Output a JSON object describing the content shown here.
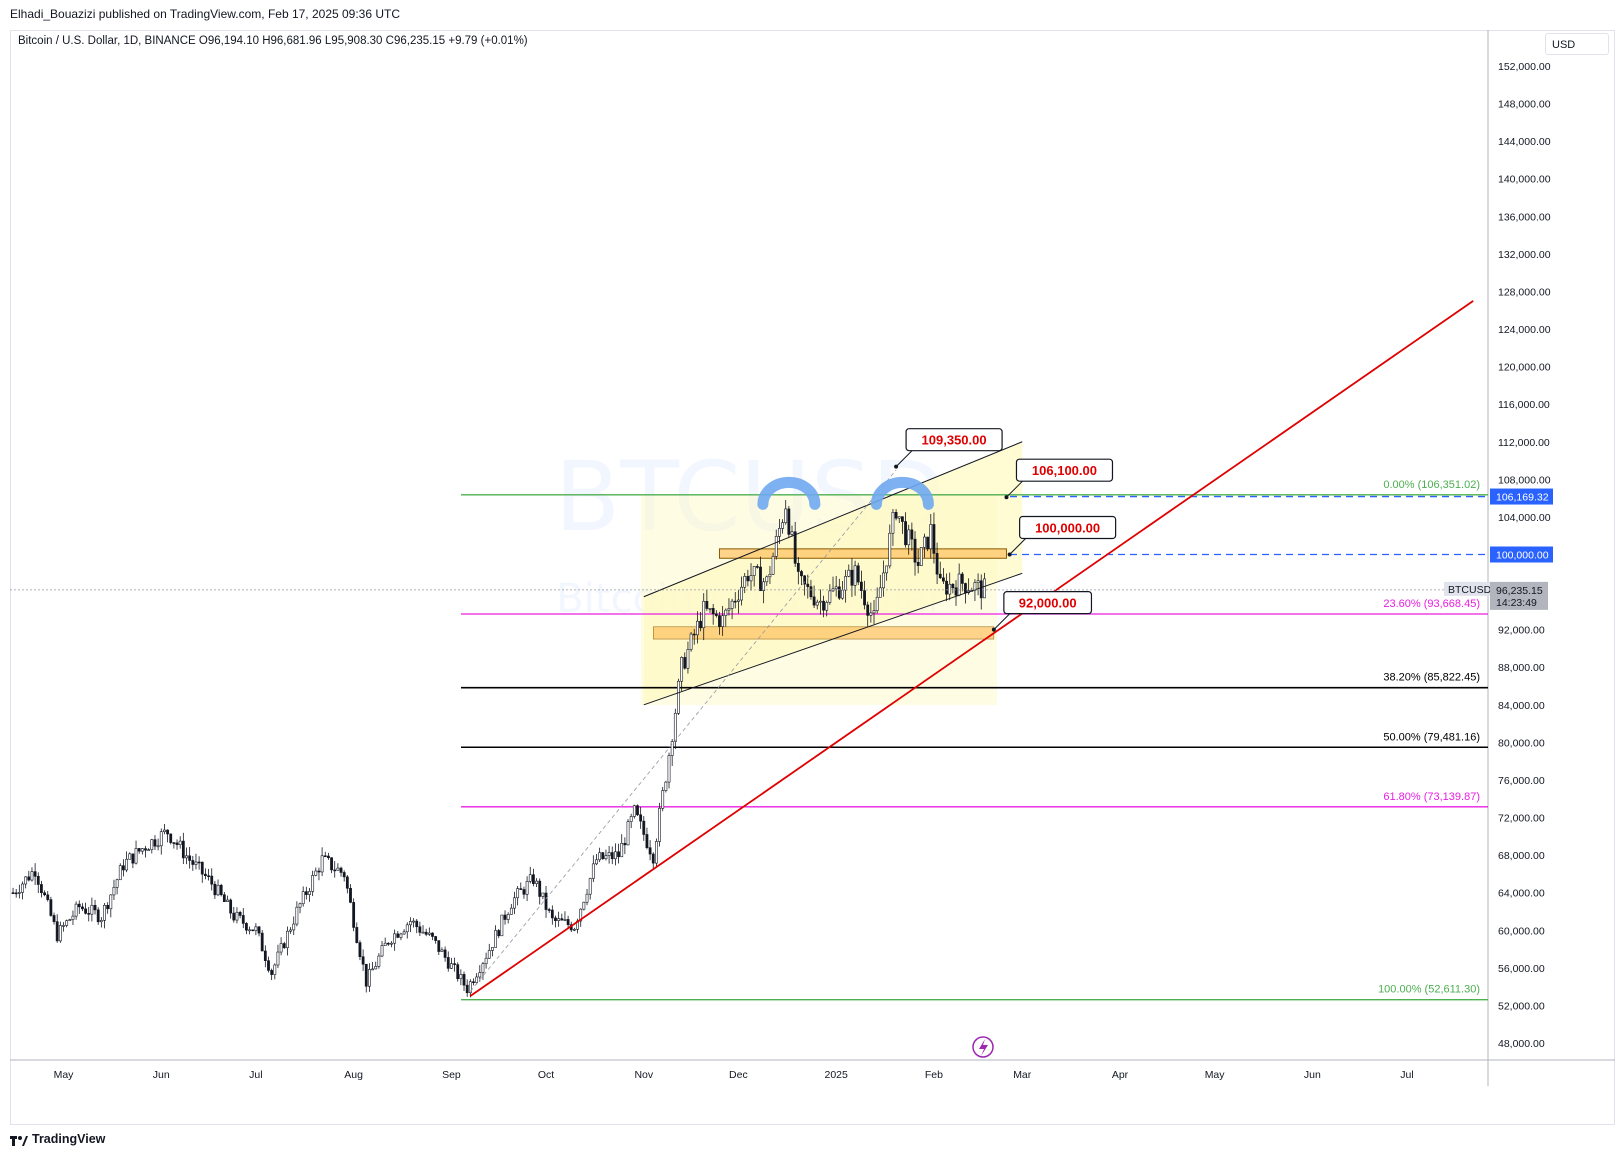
{
  "header": {
    "published": "Elhadi_Bouazizi published on TradingView.com, Feb 17, 2025 09:36 UTC",
    "symbol": "Bitcoin / U.S. Dollar, 1D, BINANCE",
    "open_label": "O",
    "open": "96,194.10",
    "high_label": "H",
    "high": "96,681.96",
    "low_label": "L",
    "low": "95,908.30",
    "close_label": "C",
    "close": "96,235.15",
    "change": "+9.79 (+0.01%)",
    "currency": "USD"
  },
  "watermark": {
    "ticker": "BTCUSD",
    "name": "Bitcoin / U.S. Dollar"
  },
  "footer": {
    "brand": "TradingView"
  },
  "colors": {
    "up": "#131722",
    "down": "#131722",
    "trendline": "#e00000",
    "fib_green": "#4caf50",
    "fib_magenta": "#e91ee3",
    "fib_black": "#000000",
    "dashed_blue": "#2962ff",
    "zone": "#ffb74d",
    "channel_fill": "#fff9c4",
    "arc": "#6fa8f0"
  },
  "chart_data": {
    "type": "candlestick",
    "symbol": "BTCUSD",
    "interval": "1D",
    "ylim": [
      46000,
      155000
    ],
    "y_ticks": [
      "152,000.00",
      "148,000.00",
      "144,000.00",
      "140,000.00",
      "136,000.00",
      "132,000.00",
      "128,000.00",
      "124,000.00",
      "120,000.00",
      "116,000.00",
      "112,000.00",
      "108,000.00",
      "104,000.00",
      "92,000.00",
      "88,000.00",
      "84,000.00",
      "80,000.00",
      "76,000.00",
      "72,000.00",
      "68,000.00",
      "64,000.00",
      "60,000.00",
      "56,000.00",
      "52,000.00",
      "48,000.00"
    ],
    "y_tick_values": [
      152000,
      148000,
      144000,
      140000,
      136000,
      132000,
      128000,
      124000,
      120000,
      116000,
      112000,
      108000,
      104000,
      92000,
      88000,
      84000,
      80000,
      76000,
      72000,
      68000,
      64000,
      60000,
      56000,
      52000,
      48000
    ],
    "x_labels": [
      "May",
      "Jun",
      "Jul",
      "Aug",
      "Sep",
      "Oct",
      "Nov",
      "Dec",
      "2025",
      "Feb",
      "Mar",
      "Apr",
      "May",
      "Jun",
      "Jul"
    ],
    "x_label_dates": [
      "2024-05-01",
      "2024-06-01",
      "2024-07-01",
      "2024-08-01",
      "2024-09-01",
      "2024-10-01",
      "2024-11-01",
      "2024-12-01",
      "2025-01-01",
      "2025-02-01",
      "2025-03-01",
      "2025-04-01",
      "2025-05-01",
      "2025-06-01",
      "2025-07-01"
    ],
    "price_path": [
      [
        "2024-04-15",
        64000
      ],
      [
        "2024-04-22",
        66500
      ],
      [
        "2024-04-29",
        59500
      ],
      [
        "2024-05-06",
        62500
      ],
      [
        "2024-05-13",
        61500
      ],
      [
        "2024-05-20",
        67000
      ],
      [
        "2024-05-27",
        69000
      ],
      [
        "2024-06-03",
        70500
      ],
      [
        "2024-06-10",
        67500
      ],
      [
        "2024-06-17",
        65000
      ],
      [
        "2024-06-24",
        61500
      ],
      [
        "2024-07-01",
        60000
      ],
      [
        "2024-07-06",
        55500
      ],
      [
        "2024-07-14",
        62000
      ],
      [
        "2024-07-22",
        67500
      ],
      [
        "2024-07-29",
        66000
      ],
      [
        "2024-08-05",
        54500
      ],
      [
        "2024-08-12",
        59000
      ],
      [
        "2024-08-19",
        61000
      ],
      [
        "2024-08-26",
        59000
      ],
      [
        "2024-09-06",
        53800
      ],
      [
        "2024-09-13",
        58000
      ],
      [
        "2024-09-20",
        63000
      ],
      [
        "2024-09-27",
        65500
      ],
      [
        "2024-10-03",
        61000
      ],
      [
        "2024-10-10",
        60500
      ],
      [
        "2024-10-17",
        67500
      ],
      [
        "2024-10-24",
        68000
      ],
      [
        "2024-10-29",
        72500
      ],
      [
        "2024-11-04",
        68000
      ],
      [
        "2024-11-08",
        76500
      ],
      [
        "2024-11-13",
        88000
      ],
      [
        "2024-11-20",
        94000
      ],
      [
        "2024-11-26",
        93000
      ],
      [
        "2024-12-04",
        98000
      ],
      [
        "2024-12-10",
        97000
      ],
      [
        "2024-12-16",
        105500
      ],
      [
        "2024-12-20",
        97000
      ],
      [
        "2024-12-27",
        95000
      ],
      [
        "2025-01-02",
        96500
      ],
      [
        "2025-01-07",
        98000
      ],
      [
        "2025-01-13",
        93000
      ],
      [
        "2025-01-20",
        105000
      ],
      [
        "2025-01-22",
        103000
      ],
      [
        "2025-01-27",
        99000
      ],
      [
        "2025-01-31",
        102500
      ],
      [
        "2025-02-03",
        96500
      ],
      [
        "2025-02-10",
        97000
      ],
      [
        "2025-02-17",
        96235
      ]
    ],
    "last_price": "96,235.15",
    "last_price_label": "BTCUSD",
    "countdown": "14:23:49",
    "horizontal_lines": [
      {
        "label": "106,169.32",
        "value": 106169.32,
        "style": "dashed"
      },
      {
        "label": "100,000.00",
        "value": 100000,
        "style": "dashed"
      }
    ],
    "fib_levels": [
      {
        "label": "0.00% (106,351.02)",
        "ratio": 0.0,
        "value": 106351.02
      },
      {
        "label": "23.60% (93,668.45)",
        "ratio": 0.236,
        "value": 93668.45
      },
      {
        "label": "38.20% (85,822.45)",
        "ratio": 0.382,
        "value": 85822.45
      },
      {
        "label": "50.00% (79,481.16)",
        "ratio": 0.5,
        "value": 79481.16
      },
      {
        "label": "61.80% (73,139.87)",
        "ratio": 0.618,
        "value": 73139.87
      },
      {
        "label": "100.00% (52,611.30)",
        "ratio": 1.0,
        "value": 52611.3
      }
    ],
    "callouts": [
      {
        "label": "109,350.00",
        "value": 109350,
        "date": "2025-01-20"
      },
      {
        "label": "106,100.00",
        "value": 106100,
        "date": "2025-02-24"
      },
      {
        "label": "100,000.00",
        "value": 100000,
        "date": "2025-02-25"
      },
      {
        "label": "92,000.00",
        "value": 92000,
        "date": "2025-02-20"
      }
    ],
    "trendline": {
      "from": [
        "2024-09-07",
        53000
      ],
      "to": [
        "2025-07-22",
        127000
      ]
    },
    "channel": {
      "upper": [
        [
          "2024-11-01",
          95500
        ],
        [
          "2025-03-01",
          112000
        ]
      ],
      "lower": [
        [
          "2024-11-01",
          84000
        ],
        [
          "2025-03-01",
          98000
        ]
      ]
    },
    "zones": [
      {
        "from": "2024-11-25",
        "to": "2025-02-24",
        "low": 99600,
        "high": 100600
      },
      {
        "from": "2024-11-04",
        "to": "2025-02-20",
        "low": 91000,
        "high": 92300
      }
    ]
  }
}
